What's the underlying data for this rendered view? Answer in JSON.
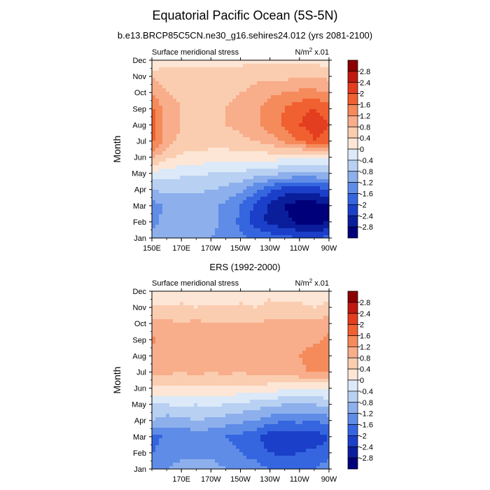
{
  "figure": {
    "title": "Equatorial Pacific Ocean (5S-5N)",
    "subtitle": "b.e13.BRCP85C5CN.ne30_g16.sehires24.012 (yrs 2081-2100)"
  },
  "colorbar": {
    "labels": [
      "2.8",
      "2.4",
      "2",
      "1.6",
      "1.2",
      "0.8",
      "0.4",
      "0",
      "-0.4",
      "-0.8",
      "-1.2",
      "-1.6",
      "-2",
      "-2.4",
      "-2.8"
    ],
    "colors": [
      "#8b0000",
      "#c01a10",
      "#e33e1f",
      "#f06030",
      "#f58a5a",
      "#f8ad8b",
      "#fbcdb0",
      "#fde6d6",
      "#dbe9f8",
      "#b8d0f2",
      "#8db0ec",
      "#5f8ce6",
      "#3566e0",
      "#1b3fc8",
      "#0a1e9c",
      "#00007a"
    ]
  },
  "chart_data": [
    {
      "type": "heatmap",
      "title": "",
      "left_label": "Surface meridional stress",
      "right_label": "N/m",
      "units_sup": "2",
      "units_tail": " x.01",
      "xlabel": "",
      "ylabel": "Month",
      "x_tick_labels": [
        "150E",
        "170E",
        "170W",
        "150W",
        "130W",
        "110W",
        "90W"
      ],
      "y_tick_labels": [
        "Jan",
        "Feb",
        "Mar",
        "Apr",
        "May",
        "Jun",
        "Jul",
        "Aug",
        "Sep",
        "Oct",
        "Nov",
        "Dec"
      ],
      "xlim_deg_east": [
        150,
        270
      ],
      "x": [
        150,
        160,
        170,
        180,
        190,
        200,
        210,
        220,
        230,
        240,
        250,
        260,
        270
      ],
      "y": [
        "Jan",
        "Feb",
        "Mar",
        "Apr",
        "May",
        "Jun",
        "Jul",
        "Aug",
        "Sep",
        "Oct",
        "Nov",
        "Dec"
      ],
      "z": [
        [
          -1.0,
          -1.1,
          -1.2,
          -1.2,
          -1.2,
          -1.3,
          -1.5,
          -1.7,
          -1.8,
          -1.9,
          -2.0,
          -2.0,
          -1.9
        ],
        [
          -1.3,
          -1.1,
          -1.0,
          -1.1,
          -1.1,
          -1.3,
          -1.7,
          -2.2,
          -2.5,
          -2.7,
          -2.9,
          -3.0,
          -2.8
        ],
        [
          -1.4,
          -1.1,
          -1.0,
          -1.0,
          -1.1,
          -1.3,
          -1.6,
          -2.1,
          -2.5,
          -2.8,
          -3.0,
          -3.0,
          -2.9
        ],
        [
          -0.8,
          -0.7,
          -0.7,
          -0.7,
          -0.8,
          -0.9,
          -1.1,
          -1.5,
          -1.9,
          -2.2,
          -2.3,
          -2.2,
          -2.0
        ],
        [
          -0.1,
          -0.2,
          -0.3,
          -0.3,
          -0.4,
          -0.4,
          -0.5,
          -0.6,
          -0.7,
          -0.8,
          -0.9,
          -0.9,
          -0.8
        ],
        [
          0.9,
          0.5,
          0.3,
          0.3,
          0.2,
          0.2,
          0.2,
          0.2,
          0.2,
          0.1,
          0.0,
          0.0,
          0.0
        ],
        [
          1.7,
          1.0,
          0.7,
          0.6,
          0.6,
          0.6,
          0.7,
          0.8,
          1.0,
          1.3,
          1.6,
          2.0,
          1.8
        ],
        [
          1.8,
          1.0,
          0.8,
          0.7,
          0.7,
          0.8,
          0.9,
          1.1,
          1.4,
          1.7,
          2.0,
          2.2,
          2.0
        ],
        [
          1.7,
          1.0,
          0.8,
          0.7,
          0.8,
          0.8,
          0.9,
          1.1,
          1.4,
          1.6,
          1.9,
          2.0,
          1.8
        ],
        [
          1.2,
          0.8,
          0.7,
          0.7,
          0.7,
          0.7,
          0.8,
          0.9,
          1.1,
          1.2,
          1.3,
          1.3,
          1.2
        ],
        [
          0.8,
          0.6,
          0.6,
          0.6,
          0.6,
          0.6,
          0.6,
          0.7,
          0.7,
          0.7,
          0.7,
          0.7,
          0.7
        ],
        [
          -0.1,
          0.2,
          0.3,
          0.3,
          0.3,
          0.3,
          0.3,
          0.3,
          0.3,
          0.3,
          0.3,
          0.3,
          0.2
        ]
      ],
      "levels": [
        -2.8,
        -2.4,
        -2.0,
        -1.6,
        -1.2,
        -0.8,
        -0.4,
        0,
        0.4,
        0.8,
        1.2,
        1.6,
        2.0,
        2.4,
        2.8
      ]
    },
    {
      "type": "heatmap",
      "title": "ERS (1992-2000)",
      "left_label": "Surface meridional stress",
      "right_label": "N/m",
      "units_sup": "2",
      "units_tail": " x.01",
      "xlabel": "",
      "ylabel": "Month",
      "x_tick_labels": [
        "170E",
        "170W",
        "150W",
        "130W",
        "110W",
        "90W"
      ],
      "y_tick_labels": [
        "Jan",
        "Feb",
        "Mar",
        "Apr",
        "May",
        "Jun",
        "Jul",
        "Aug",
        "Sep",
        "Oct",
        "Nov",
        "Dec"
      ],
      "xlim_deg_east": [
        150,
        270
      ],
      "x": [
        150,
        160,
        170,
        180,
        190,
        200,
        210,
        220,
        230,
        240,
        250,
        260,
        270
      ],
      "y": [
        "Jan",
        "Feb",
        "Mar",
        "Apr",
        "May",
        "Jun",
        "Jul",
        "Aug",
        "Sep",
        "Oct",
        "Nov",
        "Dec"
      ],
      "z": [
        [
          -1.3,
          -1.2,
          -1.0,
          -1.1,
          -1.0,
          -1.2,
          -1.3,
          -1.4,
          -1.6,
          -1.7,
          -1.8,
          -1.6,
          -1.4
        ],
        [
          -1.6,
          -1.4,
          -1.4,
          -1.3,
          -1.3,
          -1.5,
          -1.6,
          -1.8,
          -2.0,
          -2.1,
          -2.0,
          -1.9,
          -1.7
        ],
        [
          -1.8,
          -1.5,
          -1.6,
          -1.4,
          -1.5,
          -1.6,
          -1.7,
          -1.9,
          -2.2,
          -2.3,
          -2.2,
          -2.3,
          -2.0
        ],
        [
          -0.8,
          -1.0,
          -0.9,
          -0.8,
          -0.9,
          -1.0,
          -1.1,
          -1.2,
          -1.4,
          -1.6,
          -1.5,
          -1.6,
          -1.4
        ],
        [
          -0.4,
          -0.4,
          -0.3,
          -0.4,
          -0.3,
          -0.4,
          -0.5,
          -0.6,
          -0.7,
          -0.8,
          -0.8,
          -0.8,
          -0.6
        ],
        [
          0.3,
          0.3,
          0.3,
          0.3,
          0.3,
          0.3,
          0.3,
          0.3,
          0.2,
          0.1,
          0.1,
          0.0,
          0.1
        ],
        [
          0.9,
          0.9,
          0.8,
          0.9,
          0.8,
          0.9,
          0.8,
          0.9,
          0.9,
          1.0,
          1.1,
          1.3,
          1.2
        ],
        [
          1.1,
          0.9,
          0.9,
          1.0,
          0.8,
          0.9,
          0.9,
          0.9,
          0.9,
          1.0,
          1.2,
          1.4,
          1.3
        ],
        [
          1.3,
          1.0,
          0.9,
          1.0,
          0.9,
          0.9,
          0.9,
          1.0,
          0.9,
          1.0,
          1.1,
          1.1,
          1.3
        ],
        [
          0.9,
          0.9,
          0.8,
          0.9,
          0.8,
          0.8,
          0.8,
          0.8,
          0.9,
          0.9,
          0.9,
          0.9,
          1.1
        ],
        [
          0.4,
          0.5,
          0.5,
          0.4,
          0.5,
          0.4,
          0.5,
          0.4,
          0.5,
          0.5,
          0.5,
          0.4,
          0.5
        ],
        [
          0.2,
          0.0,
          0.1,
          0.2,
          0.1,
          0.2,
          0.1,
          0.2,
          0.3,
          0.2,
          0.2,
          0.1,
          0.2
        ]
      ],
      "levels": [
        -2.8,
        -2.4,
        -2.0,
        -1.6,
        -1.2,
        -0.8,
        -0.4,
        0,
        0.4,
        0.8,
        1.2,
        1.6,
        2.0,
        2.4,
        2.8
      ]
    }
  ]
}
